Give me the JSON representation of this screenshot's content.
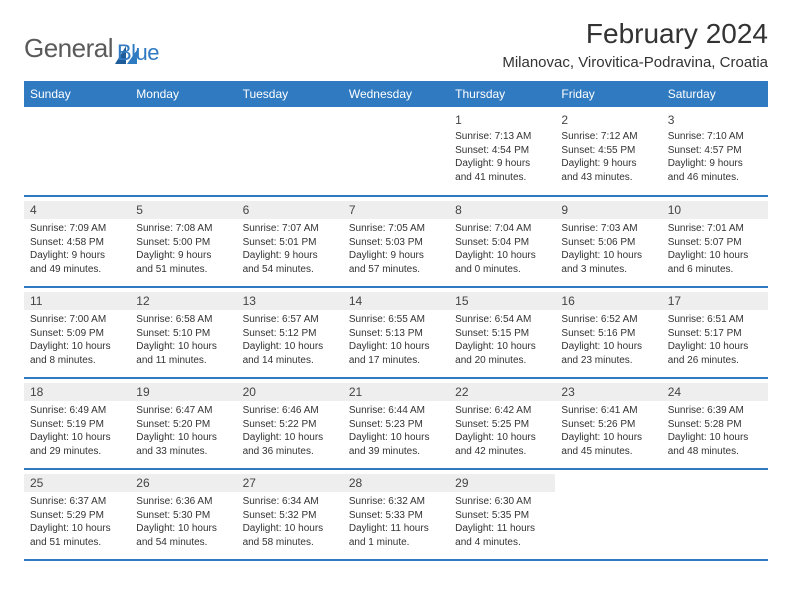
{
  "logo": {
    "text1": "General",
    "text2": "Blue"
  },
  "header": {
    "title": "February 2024",
    "location": "Milanovac, Virovitica-Podravina, Croatia"
  },
  "colors": {
    "header_bg": "#2f7ac0",
    "header_text": "#ffffff",
    "daybar_bg": "#eeeeee",
    "row_border": "#2f7ac0",
    "body_text": "#333333"
  },
  "weekdays": [
    "Sunday",
    "Monday",
    "Tuesday",
    "Wednesday",
    "Thursday",
    "Friday",
    "Saturday"
  ],
  "weeks": [
    [
      {
        "num": "",
        "sunrise": "",
        "sunset": "",
        "daylight": ""
      },
      {
        "num": "",
        "sunrise": "",
        "sunset": "",
        "daylight": ""
      },
      {
        "num": "",
        "sunrise": "",
        "sunset": "",
        "daylight": ""
      },
      {
        "num": "",
        "sunrise": "",
        "sunset": "",
        "daylight": ""
      },
      {
        "num": "1",
        "sunrise": "Sunrise: 7:13 AM",
        "sunset": "Sunset: 4:54 PM",
        "daylight": "Daylight: 9 hours and 41 minutes."
      },
      {
        "num": "2",
        "sunrise": "Sunrise: 7:12 AM",
        "sunset": "Sunset: 4:55 PM",
        "daylight": "Daylight: 9 hours and 43 minutes."
      },
      {
        "num": "3",
        "sunrise": "Sunrise: 7:10 AM",
        "sunset": "Sunset: 4:57 PM",
        "daylight": "Daylight: 9 hours and 46 minutes."
      }
    ],
    [
      {
        "num": "4",
        "sunrise": "Sunrise: 7:09 AM",
        "sunset": "Sunset: 4:58 PM",
        "daylight": "Daylight: 9 hours and 49 minutes."
      },
      {
        "num": "5",
        "sunrise": "Sunrise: 7:08 AM",
        "sunset": "Sunset: 5:00 PM",
        "daylight": "Daylight: 9 hours and 51 minutes."
      },
      {
        "num": "6",
        "sunrise": "Sunrise: 7:07 AM",
        "sunset": "Sunset: 5:01 PM",
        "daylight": "Daylight: 9 hours and 54 minutes."
      },
      {
        "num": "7",
        "sunrise": "Sunrise: 7:05 AM",
        "sunset": "Sunset: 5:03 PM",
        "daylight": "Daylight: 9 hours and 57 minutes."
      },
      {
        "num": "8",
        "sunrise": "Sunrise: 7:04 AM",
        "sunset": "Sunset: 5:04 PM",
        "daylight": "Daylight: 10 hours and 0 minutes."
      },
      {
        "num": "9",
        "sunrise": "Sunrise: 7:03 AM",
        "sunset": "Sunset: 5:06 PM",
        "daylight": "Daylight: 10 hours and 3 minutes."
      },
      {
        "num": "10",
        "sunrise": "Sunrise: 7:01 AM",
        "sunset": "Sunset: 5:07 PM",
        "daylight": "Daylight: 10 hours and 6 minutes."
      }
    ],
    [
      {
        "num": "11",
        "sunrise": "Sunrise: 7:00 AM",
        "sunset": "Sunset: 5:09 PM",
        "daylight": "Daylight: 10 hours and 8 minutes."
      },
      {
        "num": "12",
        "sunrise": "Sunrise: 6:58 AM",
        "sunset": "Sunset: 5:10 PM",
        "daylight": "Daylight: 10 hours and 11 minutes."
      },
      {
        "num": "13",
        "sunrise": "Sunrise: 6:57 AM",
        "sunset": "Sunset: 5:12 PM",
        "daylight": "Daylight: 10 hours and 14 minutes."
      },
      {
        "num": "14",
        "sunrise": "Sunrise: 6:55 AM",
        "sunset": "Sunset: 5:13 PM",
        "daylight": "Daylight: 10 hours and 17 minutes."
      },
      {
        "num": "15",
        "sunrise": "Sunrise: 6:54 AM",
        "sunset": "Sunset: 5:15 PM",
        "daylight": "Daylight: 10 hours and 20 minutes."
      },
      {
        "num": "16",
        "sunrise": "Sunrise: 6:52 AM",
        "sunset": "Sunset: 5:16 PM",
        "daylight": "Daylight: 10 hours and 23 minutes."
      },
      {
        "num": "17",
        "sunrise": "Sunrise: 6:51 AM",
        "sunset": "Sunset: 5:17 PM",
        "daylight": "Daylight: 10 hours and 26 minutes."
      }
    ],
    [
      {
        "num": "18",
        "sunrise": "Sunrise: 6:49 AM",
        "sunset": "Sunset: 5:19 PM",
        "daylight": "Daylight: 10 hours and 29 minutes."
      },
      {
        "num": "19",
        "sunrise": "Sunrise: 6:47 AM",
        "sunset": "Sunset: 5:20 PM",
        "daylight": "Daylight: 10 hours and 33 minutes."
      },
      {
        "num": "20",
        "sunrise": "Sunrise: 6:46 AM",
        "sunset": "Sunset: 5:22 PM",
        "daylight": "Daylight: 10 hours and 36 minutes."
      },
      {
        "num": "21",
        "sunrise": "Sunrise: 6:44 AM",
        "sunset": "Sunset: 5:23 PM",
        "daylight": "Daylight: 10 hours and 39 minutes."
      },
      {
        "num": "22",
        "sunrise": "Sunrise: 6:42 AM",
        "sunset": "Sunset: 5:25 PM",
        "daylight": "Daylight: 10 hours and 42 minutes."
      },
      {
        "num": "23",
        "sunrise": "Sunrise: 6:41 AM",
        "sunset": "Sunset: 5:26 PM",
        "daylight": "Daylight: 10 hours and 45 minutes."
      },
      {
        "num": "24",
        "sunrise": "Sunrise: 6:39 AM",
        "sunset": "Sunset: 5:28 PM",
        "daylight": "Daylight: 10 hours and 48 minutes."
      }
    ],
    [
      {
        "num": "25",
        "sunrise": "Sunrise: 6:37 AM",
        "sunset": "Sunset: 5:29 PM",
        "daylight": "Daylight: 10 hours and 51 minutes."
      },
      {
        "num": "26",
        "sunrise": "Sunrise: 6:36 AM",
        "sunset": "Sunset: 5:30 PM",
        "daylight": "Daylight: 10 hours and 54 minutes."
      },
      {
        "num": "27",
        "sunrise": "Sunrise: 6:34 AM",
        "sunset": "Sunset: 5:32 PM",
        "daylight": "Daylight: 10 hours and 58 minutes."
      },
      {
        "num": "28",
        "sunrise": "Sunrise: 6:32 AM",
        "sunset": "Sunset: 5:33 PM",
        "daylight": "Daylight: 11 hours and 1 minute."
      },
      {
        "num": "29",
        "sunrise": "Sunrise: 6:30 AM",
        "sunset": "Sunset: 5:35 PM",
        "daylight": "Daylight: 11 hours and 4 minutes."
      },
      {
        "num": "",
        "sunrise": "",
        "sunset": "",
        "daylight": ""
      },
      {
        "num": "",
        "sunrise": "",
        "sunset": "",
        "daylight": ""
      }
    ]
  ]
}
